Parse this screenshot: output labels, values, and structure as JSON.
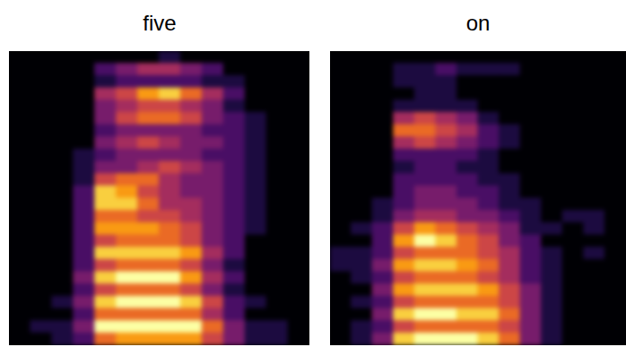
{
  "chart_data": [
    {
      "type": "heatmap",
      "title": "five",
      "tick_labels": false,
      "cell_range": [
        0,
        9
      ],
      "cells": [
        [
          0,
          0,
          0,
          0,
          0,
          0,
          0,
          1,
          0,
          0,
          0,
          0,
          0,
          0
        ],
        [
          0,
          0,
          0,
          0,
          2,
          3,
          4,
          4,
          3,
          2,
          0,
          0,
          0,
          0
        ],
        [
          0,
          0,
          0,
          0,
          1,
          2,
          2,
          2,
          2,
          1,
          1,
          0,
          0,
          0
        ],
        [
          0,
          0,
          0,
          0,
          4,
          5,
          7,
          8,
          6,
          4,
          2,
          0,
          0,
          0
        ],
        [
          0,
          0,
          0,
          0,
          3,
          4,
          5,
          5,
          4,
          3,
          1,
          0,
          0,
          0
        ],
        [
          0,
          0,
          0,
          0,
          3,
          5,
          6,
          6,
          5,
          3,
          2,
          1,
          0,
          0
        ],
        [
          0,
          0,
          0,
          0,
          2,
          3,
          3,
          3,
          3,
          2,
          2,
          1,
          0,
          0
        ],
        [
          0,
          0,
          0,
          0,
          3,
          4,
          5,
          4,
          3,
          3,
          2,
          1,
          0,
          0
        ],
        [
          0,
          0,
          0,
          1,
          2,
          3,
          3,
          3,
          3,
          2,
          2,
          1,
          0,
          0
        ],
        [
          0,
          0,
          0,
          1,
          3,
          3,
          4,
          5,
          4,
          3,
          2,
          1,
          0,
          0
        ],
        [
          0,
          0,
          0,
          1,
          5,
          6,
          6,
          4,
          3,
          3,
          2,
          1,
          0,
          0
        ],
        [
          0,
          0,
          0,
          2,
          8,
          7,
          5,
          4,
          3,
          3,
          2,
          1,
          0,
          0
        ],
        [
          0,
          0,
          0,
          2,
          8,
          8,
          6,
          4,
          4,
          3,
          2,
          1,
          0,
          0
        ],
        [
          0,
          0,
          0,
          2,
          6,
          6,
          5,
          5,
          4,
          3,
          2,
          1,
          0,
          0
        ],
        [
          0,
          0,
          0,
          2,
          7,
          7,
          7,
          6,
          5,
          3,
          2,
          1,
          0,
          0
        ],
        [
          0,
          0,
          0,
          2,
          5,
          6,
          6,
          6,
          5,
          3,
          2,
          0,
          0,
          0
        ],
        [
          0,
          0,
          0,
          2,
          8,
          8,
          8,
          8,
          7,
          4,
          2,
          0,
          0,
          0
        ],
        [
          0,
          0,
          0,
          2,
          5,
          6,
          6,
          6,
          5,
          3,
          1,
          0,
          0,
          0
        ],
        [
          0,
          0,
          0,
          3,
          8,
          9,
          9,
          9,
          7,
          4,
          2,
          0,
          0,
          0
        ],
        [
          0,
          0,
          0,
          2,
          5,
          6,
          6,
          6,
          5,
          3,
          1,
          0,
          0,
          0
        ],
        [
          0,
          0,
          1,
          3,
          8,
          9,
          9,
          9,
          8,
          5,
          2,
          1,
          0,
          0
        ],
        [
          0,
          0,
          0,
          2,
          6,
          6,
          6,
          6,
          6,
          4,
          2,
          0,
          0,
          0
        ],
        [
          0,
          1,
          1,
          3,
          9,
          9,
          9,
          9,
          9,
          6,
          3,
          1,
          1,
          0
        ],
        [
          0,
          0,
          1,
          2,
          6,
          7,
          7,
          7,
          7,
          5,
          3,
          1,
          1,
          0
        ]
      ]
    },
    {
      "type": "heatmap",
      "title": "on",
      "tick_labels": false,
      "cell_range": [
        0,
        9
      ],
      "cells": [
        [
          0,
          0,
          0,
          0,
          0,
          0,
          0,
          0,
          0,
          0,
          0,
          0,
          0,
          0
        ],
        [
          0,
          0,
          0,
          1,
          1,
          2,
          1,
          1,
          1,
          0,
          0,
          0,
          0,
          0
        ],
        [
          0,
          0,
          0,
          1,
          1,
          1,
          0,
          0,
          0,
          0,
          0,
          0,
          0,
          0
        ],
        [
          0,
          0,
          0,
          0,
          1,
          1,
          0,
          0,
          0,
          0,
          0,
          0,
          0,
          0
        ],
        [
          0,
          0,
          0,
          1,
          1,
          1,
          1,
          0,
          0,
          0,
          0,
          0,
          0,
          0
        ],
        [
          0,
          0,
          0,
          4,
          5,
          4,
          3,
          1,
          0,
          0,
          0,
          0,
          0,
          0
        ],
        [
          0,
          0,
          0,
          6,
          6,
          5,
          4,
          2,
          1,
          0,
          0,
          0,
          0,
          0
        ],
        [
          0,
          0,
          0,
          4,
          5,
          4,
          3,
          2,
          1,
          0,
          0,
          0,
          0,
          0
        ],
        [
          0,
          0,
          0,
          2,
          2,
          2,
          2,
          1,
          0,
          0,
          0,
          0,
          0,
          0
        ],
        [
          0,
          0,
          0,
          1,
          2,
          2,
          1,
          1,
          0,
          0,
          0,
          0,
          0,
          0
        ],
        [
          0,
          0,
          0,
          2,
          2,
          2,
          2,
          1,
          1,
          0,
          0,
          0,
          0,
          0
        ],
        [
          0,
          0,
          0,
          2,
          3,
          3,
          2,
          2,
          1,
          0,
          0,
          0,
          0,
          0
        ],
        [
          0,
          0,
          1,
          2,
          3,
          3,
          3,
          2,
          1,
          1,
          0,
          0,
          0,
          0
        ],
        [
          0,
          0,
          1,
          3,
          4,
          4,
          3,
          3,
          2,
          1,
          0,
          1,
          1,
          0
        ],
        [
          0,
          1,
          2,
          5,
          7,
          6,
          5,
          4,
          3,
          1,
          1,
          0,
          1,
          0
        ],
        [
          0,
          0,
          2,
          7,
          9,
          8,
          6,
          5,
          3,
          2,
          0,
          0,
          0,
          0
        ],
        [
          1,
          1,
          2,
          5,
          6,
          6,
          6,
          5,
          4,
          2,
          1,
          0,
          1,
          0
        ],
        [
          1,
          1,
          3,
          7,
          8,
          8,
          7,
          6,
          4,
          2,
          1,
          0,
          0,
          0
        ],
        [
          0,
          1,
          2,
          5,
          6,
          6,
          6,
          5,
          4,
          2,
          1,
          0,
          0,
          0
        ],
        [
          0,
          0,
          3,
          7,
          8,
          8,
          8,
          7,
          5,
          3,
          1,
          0,
          0,
          0
        ],
        [
          0,
          1,
          2,
          5,
          6,
          6,
          6,
          6,
          5,
          3,
          1,
          0,
          0,
          0
        ],
        [
          0,
          0,
          3,
          8,
          9,
          9,
          8,
          8,
          6,
          3,
          1,
          0,
          0,
          0
        ],
        [
          0,
          1,
          2,
          5,
          6,
          6,
          6,
          6,
          5,
          3,
          1,
          0,
          0,
          0
        ],
        [
          0,
          1,
          3,
          8,
          9,
          9,
          9,
          8,
          6,
          3,
          1,
          0,
          0,
          0
        ]
      ]
    }
  ]
}
